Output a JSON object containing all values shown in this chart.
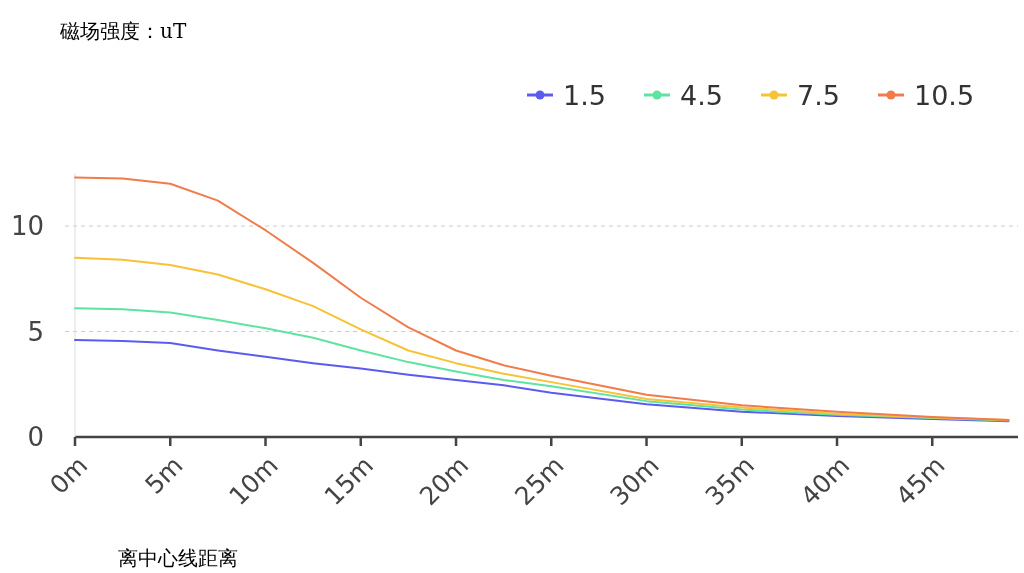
{
  "chart_data": {
    "type": "line",
    "title": "磁场强度：uT",
    "xlabel": "离中心线距离",
    "x": [
      0,
      2.5,
      5,
      7.5,
      10,
      12.5,
      15,
      17.5,
      20,
      22.5,
      25,
      30,
      35,
      40,
      45,
      49
    ],
    "series": [
      {
        "name": "1.5",
        "color": "#5b5bf0",
        "values": [
          4.6,
          4.55,
          4.45,
          4.1,
          3.8,
          3.5,
          3.25,
          2.95,
          2.7,
          2.45,
          2.1,
          1.55,
          1.2,
          1.0,
          0.85,
          0.75
        ]
      },
      {
        "name": "4.5",
        "color": "#5fe3a1",
        "values": [
          6.1,
          6.05,
          5.9,
          5.55,
          5.15,
          4.7,
          4.1,
          3.55,
          3.1,
          2.7,
          2.4,
          1.7,
          1.3,
          1.05,
          0.9,
          0.78
        ]
      },
      {
        "name": "7.5",
        "color": "#f8c236",
        "values": [
          8.5,
          8.4,
          8.15,
          7.7,
          7.0,
          6.2,
          5.1,
          4.1,
          3.5,
          3.0,
          2.6,
          1.8,
          1.4,
          1.1,
          0.92,
          0.8
        ]
      },
      {
        "name": "10.5",
        "color": "#f07c4c",
        "values": [
          12.3,
          12.25,
          12.0,
          11.2,
          9.8,
          8.25,
          6.6,
          5.2,
          4.1,
          3.4,
          2.9,
          2.0,
          1.5,
          1.2,
          0.95,
          0.8
        ]
      }
    ],
    "xlim": [
      0,
      49.5
    ],
    "ylim": [
      0,
      12.5
    ],
    "xticks": [
      {
        "value": 0,
        "label": "0m"
      },
      {
        "value": 5,
        "label": "5m"
      },
      {
        "value": 10,
        "label": "10m"
      },
      {
        "value": 15,
        "label": "15m"
      },
      {
        "value": 20,
        "label": "20m"
      },
      {
        "value": 25,
        "label": "25m"
      },
      {
        "value": 30,
        "label": "30m"
      },
      {
        "value": 35,
        "label": "35m"
      },
      {
        "value": 40,
        "label": "40m"
      },
      {
        "value": 45,
        "label": "45m"
      }
    ],
    "yticks": [
      0,
      5,
      10
    ],
    "grid": "y",
    "legend": "top right",
    "line_style": "solid"
  }
}
